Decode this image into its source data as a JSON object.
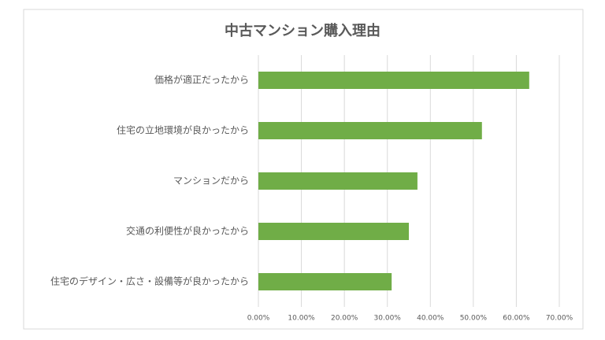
{
  "chart_data": {
    "type": "bar",
    "orientation": "horizontal",
    "title": "中古マンション購入理由",
    "categories": [
      "価格が適正だったから",
      "住宅の立地環境が良かったから",
      "マンションだから",
      "交通の利便性が良かったから",
      "住宅のデザイン・広さ・設備等が良かったから"
    ],
    "values": [
      63,
      52,
      37,
      35,
      31
    ],
    "color": "#70ad47",
    "xlim": [
      0,
      70
    ],
    "xticks": [
      {
        "value": 0,
        "label": "0.00%"
      },
      {
        "value": 10,
        "label": "10.00%"
      },
      {
        "value": 20,
        "label": "20.00%"
      },
      {
        "value": 30,
        "label": "30.00%"
      },
      {
        "value": 40,
        "label": "40.00%"
      },
      {
        "value": 50,
        "label": "50.00%"
      },
      {
        "value": 60,
        "label": "60.00%"
      },
      {
        "value": 70,
        "label": "70.00%"
      }
    ],
    "grid": true
  }
}
